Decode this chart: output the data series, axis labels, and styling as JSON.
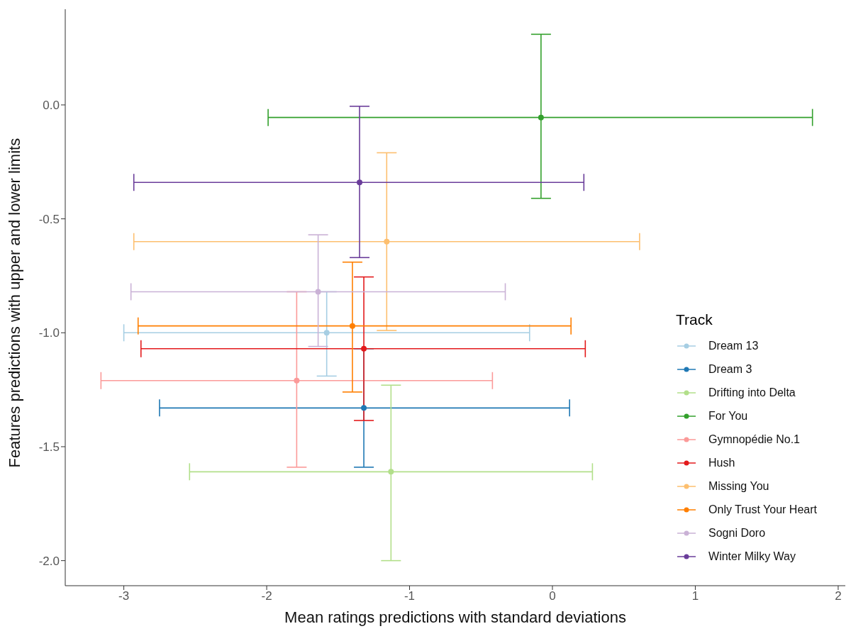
{
  "chart_data": {
    "type": "scatter",
    "xlabel": "Mean ratings predictions with standard deviations",
    "ylabel": "Features predictions with upper and lower limits",
    "legend_title": "Track",
    "legend": "bottom right",
    "grid": false,
    "marker": "circle",
    "xlim": [
      -3.41,
      2.05
    ],
    "ylim": [
      -2.11,
      0.42
    ],
    "xticks": [
      -3,
      -2,
      -1,
      0,
      1,
      2
    ],
    "yticks": [
      {
        "value": 0,
        "label": "0.0"
      },
      {
        "value": -0.5,
        "label": "-0.5"
      },
      {
        "value": -1,
        "label": "-1.0"
      },
      {
        "value": -1.5,
        "label": "-1.5"
      },
      {
        "value": -2,
        "label": "-2.0"
      }
    ],
    "series": [
      {
        "name": "Dream 13",
        "color": "#a6cee3",
        "x": [
          -1.58
        ],
        "values": [
          -1.0
        ],
        "errors": [
          [
            -1.19,
            -0.82
          ]
        ],
        "xerrors": [
          [
            -3.0,
            -0.16
          ]
        ]
      },
      {
        "name": "Dream 3",
        "color": "#1f78b4",
        "x": [
          -1.32
        ],
        "values": [
          -1.33
        ],
        "errors": [
          [
            -1.59,
            -1.07
          ]
        ],
        "xerrors": [
          [
            -2.75,
            0.12
          ]
        ]
      },
      {
        "name": "Drifting into Delta",
        "color": "#b2df8a",
        "x": [
          -1.13
        ],
        "values": [
          -1.61
        ],
        "errors": [
          [
            -2.0,
            -1.23
          ]
        ],
        "xerrors": [
          [
            -2.54,
            0.28
          ]
        ]
      },
      {
        "name": "For You",
        "color": "#33a02c",
        "x": [
          -0.08
        ],
        "values": [
          -0.055
        ],
        "errors": [
          [
            -0.41,
            0.31
          ]
        ],
        "xerrors": [
          [
            -1.99,
            1.82
          ]
        ]
      },
      {
        "name": "Gymnopédie No.1",
        "color": "#fb9a99",
        "x": [
          -1.79
        ],
        "values": [
          -1.21
        ],
        "errors": [
          [
            -1.59,
            -0.82
          ]
        ],
        "xerrors": [
          [
            -3.16,
            -0.42
          ]
        ]
      },
      {
        "name": "Hush",
        "color": "#e31a1c",
        "x": [
          -1.32
        ],
        "values": [
          -1.07
        ],
        "errors": [
          [
            -1.385,
            -0.755
          ]
        ],
        "xerrors": [
          [
            -2.88,
            0.23
          ]
        ]
      },
      {
        "name": "Missing You",
        "color": "#fdbf6f",
        "x": [
          -1.16
        ],
        "values": [
          -0.6
        ],
        "errors": [
          [
            -0.99,
            -0.21
          ]
        ],
        "xerrors": [
          [
            -2.93,
            0.61
          ]
        ]
      },
      {
        "name": "Only Trust Your Heart",
        "color": "#ff7f00",
        "x": [
          -1.4
        ],
        "values": [
          -0.97
        ],
        "errors": [
          [
            -1.26,
            -0.69
          ]
        ],
        "xerrors": [
          [
            -2.9,
            0.13
          ]
        ]
      },
      {
        "name": "Sogni Doro",
        "color": "#cab2d6",
        "x": [
          -1.64
        ],
        "values": [
          -0.82
        ],
        "errors": [
          [
            -1.06,
            -0.57
          ]
        ],
        "xerrors": [
          [
            -2.95,
            -0.33
          ]
        ]
      },
      {
        "name": "Winter Milky Way",
        "color": "#6a3d9a",
        "x": [
          -1.35
        ],
        "values": [
          -0.34
        ],
        "errors": [
          [
            -0.67,
            -0.006
          ]
        ],
        "xerrors": [
          [
            -2.93,
            0.22
          ]
        ]
      }
    ]
  }
}
